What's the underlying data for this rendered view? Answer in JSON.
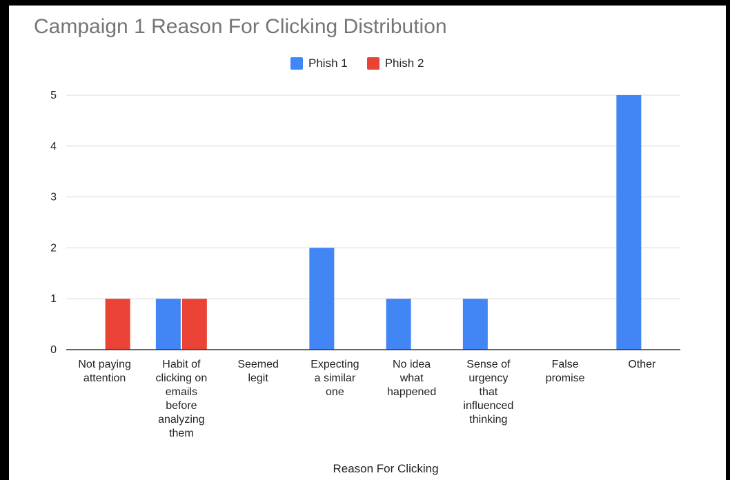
{
  "chart_data": {
    "type": "bar",
    "title": "Campaign 1 Reason For Clicking Distribution",
    "xlabel": "Reason For Clicking",
    "ylabel": "",
    "ylim": [
      0,
      5
    ],
    "yticks": [
      0,
      1,
      2,
      3,
      4,
      5
    ],
    "grid": true,
    "legend_position": "top",
    "categories": [
      "Not paying attention",
      "Habit of clicking on emails before analyzing them",
      "Seemed legit",
      "Expecting a similar one",
      "No idea what happened",
      "Sense of urgency that influenced thinking",
      "False promise",
      "Other"
    ],
    "category_label_lines": [
      [
        "Not paying",
        "attention"
      ],
      [
        "Habit of",
        "clicking on",
        "emails",
        "before",
        "analyzing",
        "them"
      ],
      [
        "Seemed",
        "legit"
      ],
      [
        "Expecting",
        "a similar",
        "one"
      ],
      [
        "No idea",
        "what",
        "happened"
      ],
      [
        "Sense of",
        "urgency",
        "that",
        "influenced",
        "thinking"
      ],
      [
        "False",
        "promise"
      ],
      [
        "Other"
      ]
    ],
    "series": [
      {
        "name": "Phish 1",
        "color": "#4285f4",
        "values": [
          0,
          1,
          0,
          2,
          1,
          1,
          0,
          5
        ]
      },
      {
        "name": "Phish 2",
        "color": "#ea4335",
        "values": [
          1,
          1,
          0,
          0,
          0,
          0,
          0,
          0
        ]
      }
    ]
  }
}
